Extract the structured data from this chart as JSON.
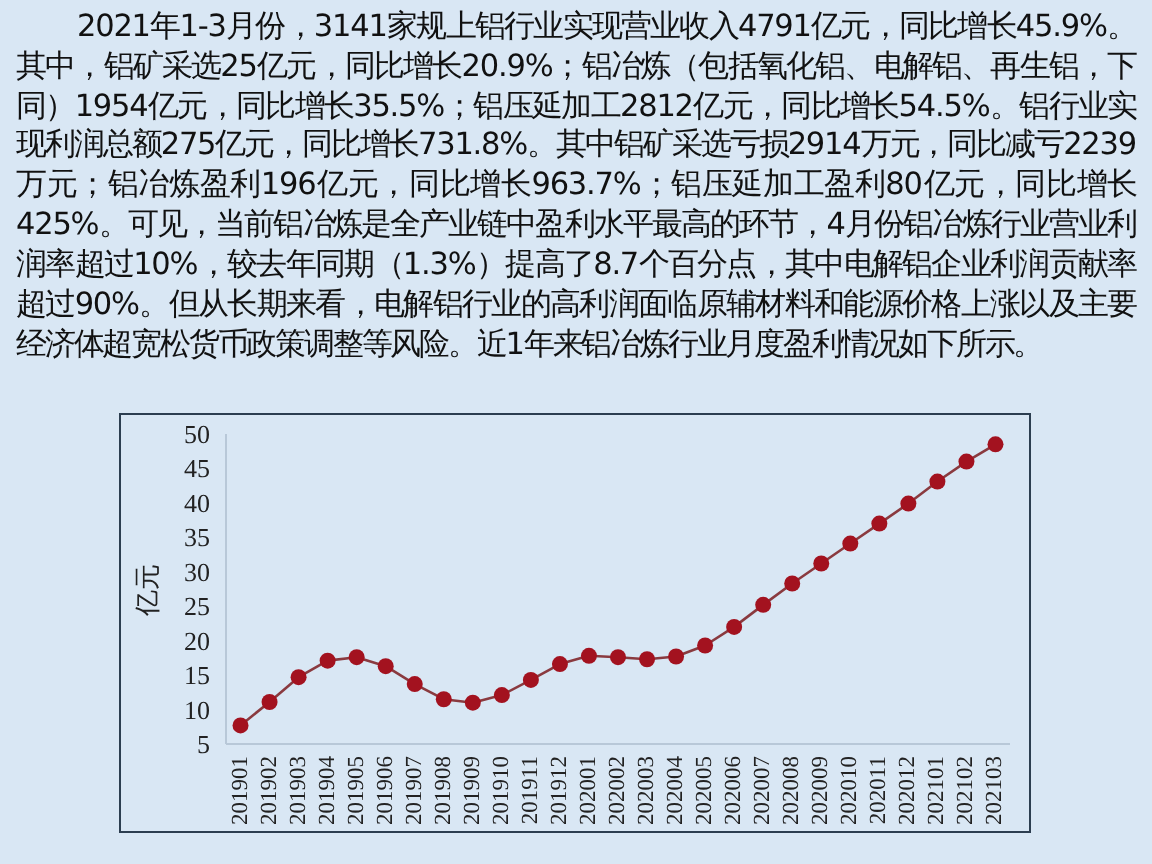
{
  "chart_data": {
    "type": "line",
    "annotations": [
      "2021年1-3月份，3141家规上铝行业实现营业收入4791亿元，同比增长45.9%。其中，铝矿采选25亿元，同比增长20.9%；铝冶炼（包括氧化铝、电解铝、再生铝，下同）1954亿元，同比增长35.5%；铝压延加工2812亿元，同比增长54.5%。铝行业实现利润总额275亿元，同比增长731.8%。其中铝矿采选亏损2914万元，同比减亏2239万元；铝冶炼盈利196亿元，同比增长963.7%；铝压延加工盈利80亿元，同比增长425%。可见，当前铝冶炼是全产业链中盈利水平最高的环节，4月份铝冶炼行业营业利润率超过10%，较去年同期（1.3%）提高了8.7个百分点，其中电解铝企业利润贡献率超过90%。但从长期来看，电解铝行业的高利润面临原辅材料和能源价格上涨以及主要经济体超宽松货币政策调整等风险。近1年来铝冶炼行业月度盈利情况如下所示。"
    ],
    "ylabel": "亿元",
    "categories": [
      "201901",
      "201902",
      "201903",
      "201904",
      "201905",
      "201906",
      "201907",
      "201908",
      "201909",
      "201910",
      "201911",
      "201912",
      "202001",
      "202002",
      "202003",
      "202004",
      "202005",
      "202006",
      "202007",
      "202008",
      "202009",
      "202010",
      "202011",
      "202012",
      "202101",
      "202102",
      "202103"
    ],
    "series": [
      {
        "color": "#a3121f",
        "values": [
          7.7,
          11.1,
          14.7,
          17.1,
          17.6,
          16.3,
          13.7,
          11.5,
          11.0,
          12.1,
          14.3,
          16.6,
          17.8,
          17.6,
          17.3,
          17.7,
          19.3,
          22.0,
          25.2,
          28.3,
          31.2,
          34.1,
          37.0,
          39.9,
          43.1,
          46.0,
          48.5
        ]
      }
    ],
    "ylim": [
      5,
      50
    ],
    "yticks": [
      5,
      10,
      15,
      20,
      25,
      30,
      35,
      40,
      45,
      50
    ],
    "marker": "circle"
  }
}
